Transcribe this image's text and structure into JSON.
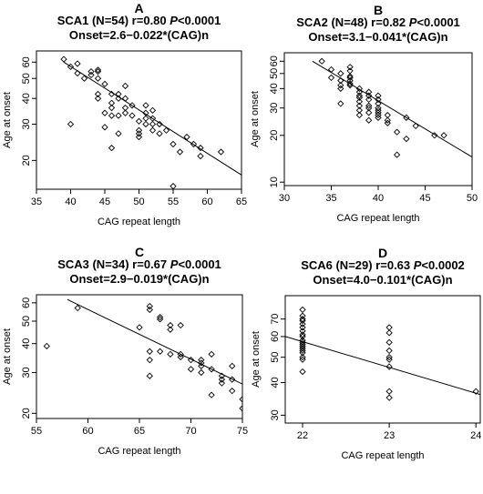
{
  "colors": {
    "axis": "#000000",
    "point": "#000000",
    "line": "#000000",
    "background": "#ffffff"
  },
  "chart_data": [
    {
      "panel_letter": "A",
      "type": "scatter",
      "title_line1": "SCA1 (N=54) r=0.80 ",
      "title_p": "P",
      "title_line1_tail": "<0.0001",
      "title_line2": "Onset=2.6−0.022*(CAG)n",
      "xlabel": "CAG repeat length",
      "ylabel": "Age at onset",
      "y_scale": "log",
      "xlim": [
        35,
        65
      ],
      "ylim": [
        14.5,
        68
      ],
      "xticks": [
        35,
        40,
        45,
        50,
        55,
        60,
        65
      ],
      "yticks": [
        20,
        30,
        40,
        50,
        60
      ],
      "regression": {
        "x": [
          39,
          65
        ],
        "y": [
          60,
          17
        ]
      },
      "points": [
        [
          39,
          62
        ],
        [
          40,
          57
        ],
        [
          40,
          30
        ],
        [
          41,
          59
        ],
        [
          41,
          53
        ],
        [
          42,
          50
        ],
        [
          43,
          54
        ],
        [
          43,
          52
        ],
        [
          44,
          55
        ],
        [
          44,
          54
        ],
        [
          44,
          50
        ],
        [
          44,
          42
        ],
        [
          44,
          40
        ],
        [
          45,
          47
        ],
        [
          45,
          34
        ],
        [
          45,
          29
        ],
        [
          46,
          42
        ],
        [
          46,
          38
        ],
        [
          46,
          36
        ],
        [
          46,
          33
        ],
        [
          46,
          23
        ],
        [
          47,
          42
        ],
        [
          47,
          40
        ],
        [
          47,
          33
        ],
        [
          47,
          27
        ],
        [
          48,
          46
        ],
        [
          48,
          40
        ],
        [
          48,
          36
        ],
        [
          48,
          34
        ],
        [
          49,
          37
        ],
        [
          49,
          33
        ],
        [
          50,
          31
        ],
        [
          50,
          28
        ],
        [
          50,
          27
        ],
        [
          50,
          26
        ],
        [
          51,
          37
        ],
        [
          51,
          34
        ],
        [
          51,
          32
        ],
        [
          51,
          30
        ],
        [
          52,
          35
        ],
        [
          52,
          32
        ],
        [
          52,
          30
        ],
        [
          52,
          28
        ],
        [
          53,
          30
        ],
        [
          53,
          27
        ],
        [
          54,
          28
        ],
        [
          55,
          24
        ],
        [
          55,
          15
        ],
        [
          56,
          22
        ],
        [
          57,
          26
        ],
        [
          58,
          24
        ],
        [
          59,
          23
        ],
        [
          59,
          21
        ],
        [
          62,
          22
        ]
      ]
    },
    {
      "panel_letter": "B",
      "type": "scatter",
      "title_line1": "SCA2 (N=48) r=0.82 ",
      "title_p": "P",
      "title_line1_tail": "<0.0001",
      "title_line2": "Onset=3.1−0.041*(CAG)n",
      "xlabel": "CAG repeat length",
      "ylabel": "Age at onset",
      "y_scale": "log",
      "xlim": [
        30,
        50
      ],
      "ylim": [
        9.5,
        68
      ],
      "xticks": [
        30,
        35,
        40,
        45,
        50
      ],
      "yticks": [
        10,
        20,
        30,
        40,
        50,
        60
      ],
      "regression": {
        "x": [
          33,
          50
        ],
        "y": [
          60,
          14.5
        ]
      },
      "points": [
        [
          34,
          60
        ],
        [
          35,
          53
        ],
        [
          35,
          47
        ],
        [
          36,
          50
        ],
        [
          36,
          45
        ],
        [
          36,
          42
        ],
        [
          36,
          40
        ],
        [
          36,
          32
        ],
        [
          37,
          55
        ],
        [
          37,
          52
        ],
        [
          37,
          48
        ],
        [
          37,
          47
        ],
        [
          37,
          45
        ],
        [
          37,
          43
        ],
        [
          37,
          42
        ],
        [
          38,
          40
        ],
        [
          38,
          38
        ],
        [
          38,
          36
        ],
        [
          38,
          35
        ],
        [
          38,
          33
        ],
        [
          38,
          31
        ],
        [
          38,
          29
        ],
        [
          38,
          27
        ],
        [
          39,
          38
        ],
        [
          39,
          36
        ],
        [
          39,
          34
        ],
        [
          39,
          31
        ],
        [
          39,
          30
        ],
        [
          39,
          28
        ],
        [
          40,
          36
        ],
        [
          40,
          34
        ],
        [
          40,
          32
        ],
        [
          40,
          30
        ],
        [
          40,
          29
        ],
        [
          40,
          28
        ],
        [
          40,
          27
        ],
        [
          40,
          26
        ],
        [
          41,
          27
        ],
        [
          41,
          25
        ],
        [
          41,
          24
        ],
        [
          42,
          21
        ],
        [
          42,
          15
        ],
        [
          43,
          26
        ],
        [
          43,
          19
        ],
        [
          44,
          23
        ],
        [
          46,
          20
        ],
        [
          47,
          20
        ],
        [
          39,
          25
        ]
      ]
    },
    {
      "panel_letter": "C",
      "type": "scatter",
      "title_line1": "SCA3 (N=34) r=0.67 ",
      "title_p": "P",
      "title_line1_tail": "<0.0001",
      "title_line2": "Onset=2.9−0.019*(CAG)n",
      "xlabel": "CAG repeat length",
      "ylabel": "Age at onset",
      "y_scale": "log",
      "xlim": [
        55,
        75
      ],
      "ylim": [
        19,
        65
      ],
      "xticks": [
        55,
        60,
        65,
        70,
        75
      ],
      "yticks": [
        20,
        30,
        40,
        50,
        60
      ],
      "regression": {
        "x": [
          58,
          75.2
        ],
        "y": [
          62,
          26.5
        ]
      },
      "points": [
        [
          56,
          39
        ],
        [
          59,
          57
        ],
        [
          65,
          47
        ],
        [
          66,
          58
        ],
        [
          66,
          56
        ],
        [
          66,
          37
        ],
        [
          66,
          34
        ],
        [
          66,
          29
        ],
        [
          67,
          52
        ],
        [
          67,
          51
        ],
        [
          67,
          37
        ],
        [
          68,
          48
        ],
        [
          68,
          46
        ],
        [
          68,
          36
        ],
        [
          69,
          48
        ],
        [
          69,
          36
        ],
        [
          69,
          35
        ],
        [
          70,
          34
        ],
        [
          70,
          31
        ],
        [
          71,
          34
        ],
        [
          71,
          33
        ],
        [
          71,
          32
        ],
        [
          71,
          30
        ],
        [
          72,
          36
        ],
        [
          72,
          31
        ],
        [
          72,
          24
        ],
        [
          73,
          29
        ],
        [
          73,
          28
        ],
        [
          73,
          27
        ],
        [
          74,
          32
        ],
        [
          74,
          28
        ],
        [
          74,
          25
        ],
        [
          75,
          23
        ],
        [
          75,
          21
        ]
      ]
    },
    {
      "panel_letter": "D",
      "type": "scatter",
      "title_line1": "SCA6 (N=29) r=0.63 ",
      "title_p": "P",
      "title_line1_tail": "<0.0002",
      "title_line2": "Onset=4.0−0.101*(CAG)n",
      "xlabel": "CAG repeat length",
      "ylabel": "Age at onset",
      "y_scale": "log",
      "xlim": [
        21.8,
        24.05
      ],
      "ylim": [
        28,
        86
      ],
      "xticks": [
        22,
        23,
        24
      ],
      "yticks": [
        30,
        40,
        50,
        60,
        70
      ],
      "regression": {
        "x": [
          21.8,
          24.05
        ],
        "y": [
          60,
          36
        ]
      },
      "points": [
        [
          22,
          76
        ],
        [
          22,
          72
        ],
        [
          22,
          70
        ],
        [
          22,
          69
        ],
        [
          22,
          67
        ],
        [
          22,
          65
        ],
        [
          22,
          63
        ],
        [
          22,
          61
        ],
        [
          22,
          60
        ],
        [
          22,
          58
        ],
        [
          22,
          57
        ],
        [
          22,
          56
        ],
        [
          22,
          55
        ],
        [
          22,
          54
        ],
        [
          22,
          52
        ],
        [
          22,
          50
        ],
        [
          22,
          49
        ],
        [
          22,
          44
        ],
        [
          23,
          65
        ],
        [
          23,
          62
        ],
        [
          23,
          57
        ],
        [
          23,
          53
        ],
        [
          23,
          50
        ],
        [
          23,
          49
        ],
        [
          23,
          46
        ],
        [
          23,
          37
        ],
        [
          23,
          35
        ],
        [
          24,
          37
        ],
        [
          22,
          53
        ]
      ]
    }
  ]
}
